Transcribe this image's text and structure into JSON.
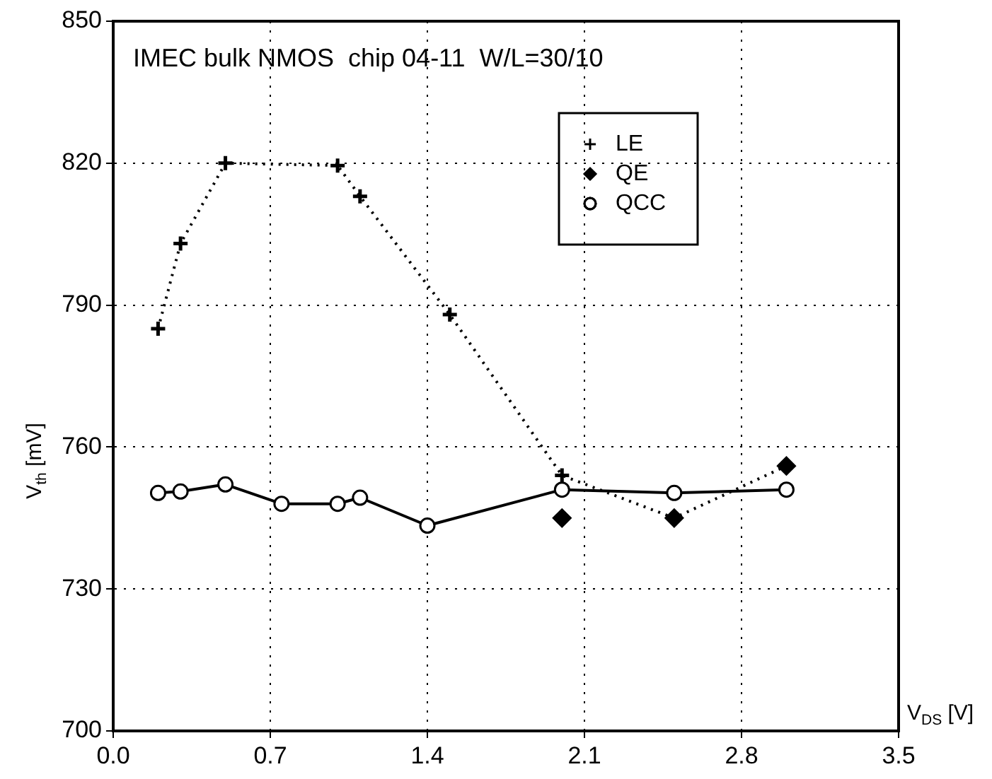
{
  "chart_data": {
    "type": "line",
    "title": "IMEC bulk NMOS  chip 04-11  W/L=30/10",
    "xlabel": "V$_{DS}$ [V]",
    "ylabel": "V$_{th}$ [mV]",
    "xlim": [
      0,
      3.5
    ],
    "xticks": [
      {
        "value": 0,
        "label": "0.0"
      },
      {
        "value": 0.7,
        "label": "0.7"
      },
      {
        "value": 1.4,
        "label": "1.4"
      },
      {
        "value": 2.1,
        "label": "2.1"
      },
      {
        "value": 2.8,
        "label": "2.8"
      },
      {
        "value": 3.5,
        "label": "3.5"
      }
    ],
    "ylim": [
      700,
      850
    ],
    "yticks": [
      700,
      730,
      760,
      790,
      820,
      850
    ],
    "grid": true,
    "legend": "top right",
    "series": [
      {
        "name": "LE",
        "type": "line",
        "color": "#000000",
        "marker": "cross",
        "line_style": "dotted",
        "x": [
          0.2,
          0.3,
          0.5,
          1.0,
          1.1,
          1.5,
          2.0,
          2.5,
          3.0
        ],
        "values": [
          785,
          803,
          820,
          819.5,
          813,
          788,
          754,
          745,
          756
        ]
      },
      {
        "name": "QE",
        "type": "scatter",
        "color": "#000000",
        "marker": "diamond",
        "x": [
          2.0,
          2.5,
          3.0
        ],
        "values": [
          745,
          745,
          756
        ]
      },
      {
        "name": "QCC",
        "type": "line",
        "color": "#000000",
        "marker": "circle",
        "line_style": "solid",
        "x": [
          0.2,
          0.3,
          0.5,
          0.75,
          1.0,
          1.1,
          1.4,
          2.0,
          2.5,
          3.0
        ],
        "values": [
          750.3,
          750.6,
          752.1,
          748,
          748,
          749.3,
          743.4,
          751,
          750.3,
          751
        ]
      }
    ]
  }
}
